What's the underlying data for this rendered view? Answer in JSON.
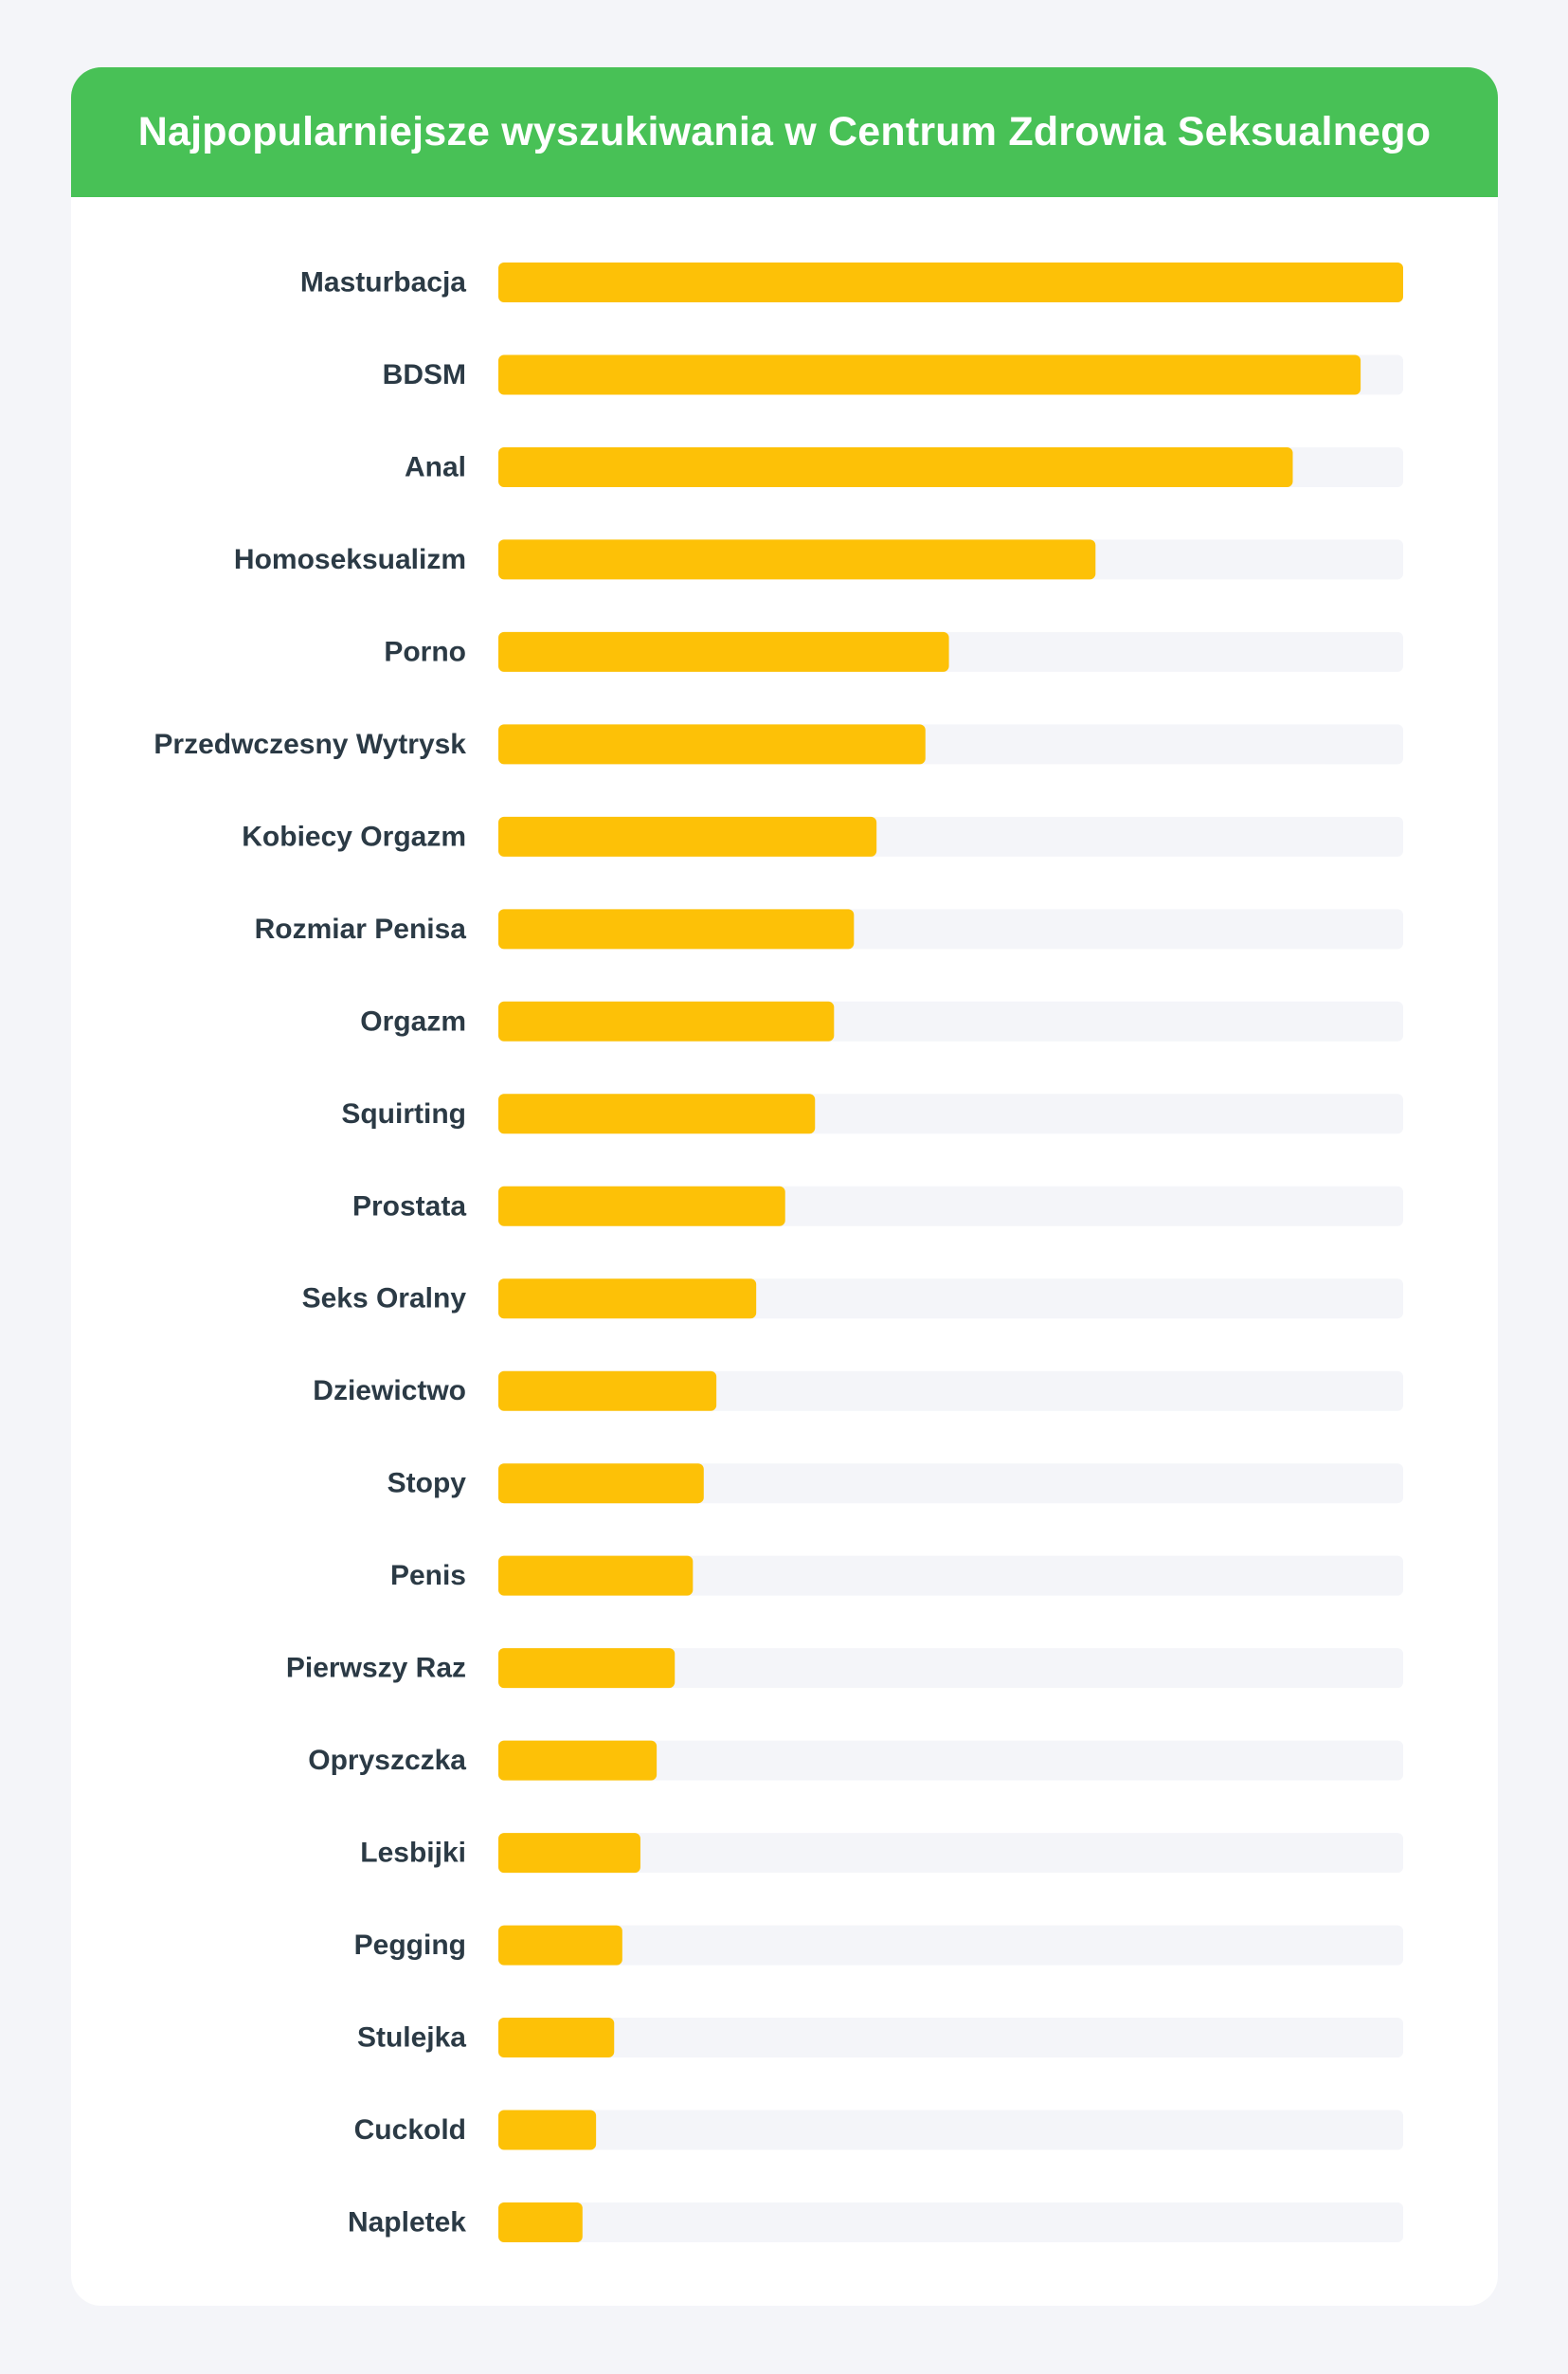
{
  "chart_data": {
    "type": "bar",
    "orientation": "horizontal",
    "title": "Najpopularniejsze wyszukiwania w Centrum Zdrowia Seksualnego",
    "categories": [
      "Masturbacja",
      "BDSM",
      "Anal",
      "Homoseksualizm",
      "Porno",
      "Przedwczesny Wytrysk",
      "Kobiecy Orgazm",
      "Rozmiar Penisa",
      "Orgazm",
      "Squirting",
      "Prostata",
      "Seks Oralny",
      "Dziewictwo",
      "Stopy",
      "Penis",
      "Pierwszy Raz",
      "Opryszczka",
      "Lesbijki",
      "Pegging",
      "Stulejka",
      "Cuckold",
      "Napletek"
    ],
    "values": [
      100,
      95.3,
      87.8,
      66,
      49.8,
      47.2,
      41.8,
      39.3,
      37.1,
      35,
      31.7,
      28.5,
      24.1,
      22.7,
      21.5,
      19.5,
      17.5,
      15.7,
      13.7,
      12.8,
      10.8,
      9.3
    ],
    "xlim": [
      0,
      100
    ],
    "grid": false,
    "legend": "none",
    "colors": {
      "header": "#48c156",
      "bar": "#fdc107",
      "track": "#f4f5f9",
      "label": "#2b3a45",
      "background": "#f4f5f9",
      "card": "#ffffff"
    }
  }
}
